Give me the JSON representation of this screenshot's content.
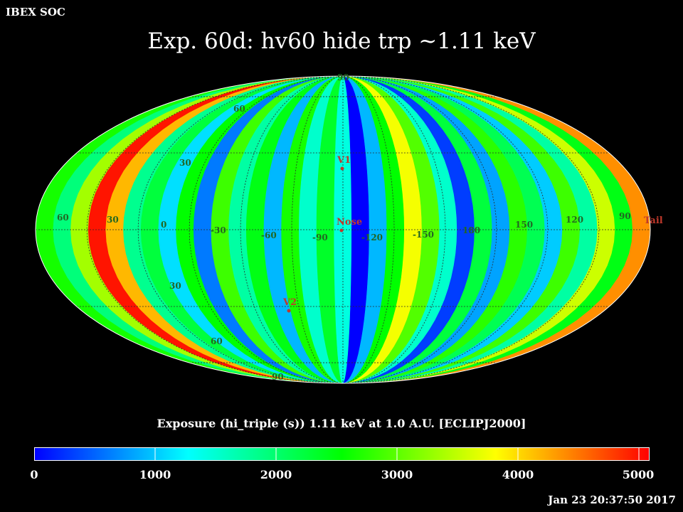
{
  "header": {
    "org_label": "IBEX SOC",
    "title": "Exp.   60d: hv60 hide trp ~1.11 keV",
    "timestamp": "Jan 23 20:37:50 2017"
  },
  "map": {
    "projection": "Aitoff / Hammer-Aitoff all-sky",
    "lon_labels": [
      "60",
      "30",
      "0",
      "-30",
      "-60",
      "-90",
      "-120",
      "-150",
      "180",
      "150",
      "120",
      "90"
    ],
    "lat_labels": [
      "90",
      "60",
      "30",
      "30",
      "60",
      "90"
    ],
    "markers": [
      {
        "label": "V1",
        "color": "#c0392b"
      },
      {
        "label": "Nose",
        "color": "#c0392b"
      },
      {
        "label": "V2",
        "color": "#c0392b"
      },
      {
        "label": "Tail",
        "color": "#c0392b"
      }
    ],
    "strip_values": [
      2600,
      1900,
      3300,
      4900,
      4100,
      1800,
      2200,
      1100,
      2500,
      600,
      2800,
      1700,
      2400,
      900,
      2600,
      1500,
      2300,
      1400,
      0,
      900,
      2500,
      3700,
      2900,
      1500,
      300,
      2200,
      800,
      2700,
      2100,
      1000,
      2800,
      1700,
      3500,
      2400,
      4300
    ]
  },
  "colorbar": {
    "title": "Exposure (hi_triple (s))  1.11 keV at 1.0 A.U. [ECLIPJ2000]",
    "ticks": [
      "0",
      "1000",
      "2000",
      "3000",
      "4000",
      "5000"
    ],
    "range": [
      0,
      5000
    ],
    "colors": [
      "#0000ff",
      "#00ffff",
      "#00ff00",
      "#ffff00",
      "#ff0000"
    ]
  }
}
